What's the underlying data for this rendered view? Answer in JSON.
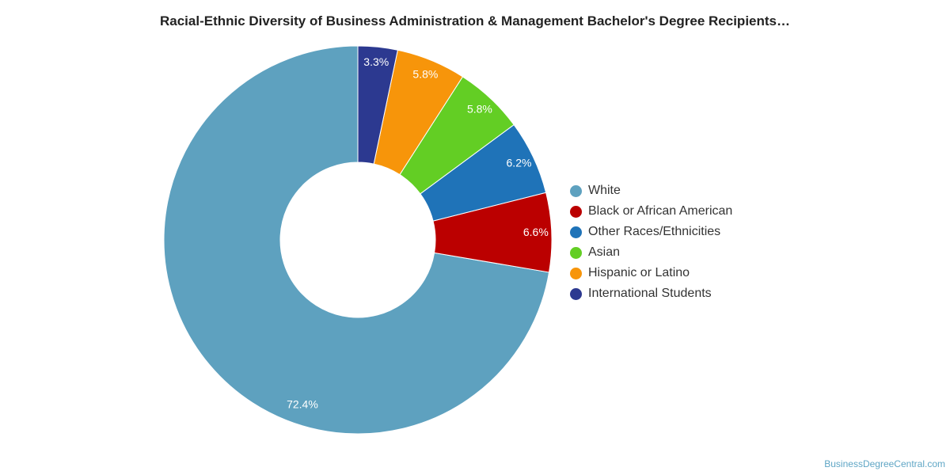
{
  "credit": "BusinessDegreeCentral.com",
  "chart_data": {
    "type": "pie",
    "donut": true,
    "title": "Racial-Ethnic Diversity of Business Administration & Management Bachelor's Degree Recipients…",
    "legend_position": "right",
    "series": [
      {
        "name": "White",
        "value": 72.4,
        "label": "72.4%",
        "color": "#5ea1bf"
      },
      {
        "name": "Black or African American",
        "value": 6.6,
        "label": "6.6%",
        "color": "#bb0000"
      },
      {
        "name": "Other Races/Ethnicities",
        "value": 6.2,
        "label": "6.2%",
        "color": "#1f73b8"
      },
      {
        "name": "Asian",
        "value": 5.8,
        "label": "5.8%",
        "color": "#63ce24"
      },
      {
        "name": "Hispanic or Latino",
        "value": 5.8,
        "label": "5.8%",
        "color": "#f7950a"
      },
      {
        "name": "International Students",
        "value": 3.3,
        "label": "3.3%",
        "color": "#2c3990"
      }
    ]
  }
}
